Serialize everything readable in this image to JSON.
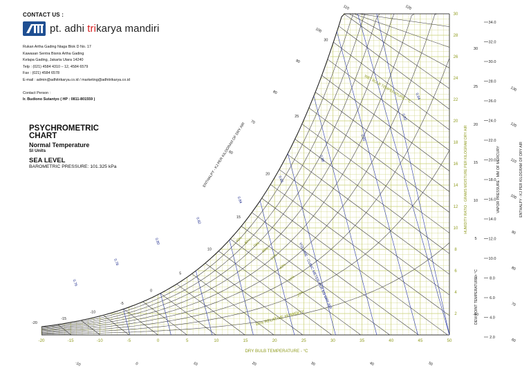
{
  "contact": {
    "title": "CONTACT US :",
    "company_pre": "pt. adhi ",
    "company_accent": "tri",
    "company_post": "karya mandiri",
    "address_lines": [
      "Rukan Artha Gading Niaga Blok D No. 17",
      "Kawasan Sentra Bisnis Artha Gading",
      "Kelapa Gading, Jakarta Utara 14240",
      "Telp  :  (021) 4584 4310 – 12, 4584 6579",
      "Fax   :  (021) 4584 6578",
      "E-mail  :  admin@adhitrikarya.co.id / marketing@adhitrikarya.co.id"
    ],
    "person_label": "Contact Person  :",
    "person": "Ir. Budiono Sutantyo  ( HP : 0811-801559 )"
  },
  "title_block": {
    "line1": "PSYCHROMETRIC",
    "line2": "CHART",
    "line3": "Normal Temperature",
    "line4": "SI Units",
    "line5": "SEA LEVEL",
    "line6": "BAROMETRIC PRESSURE: 101.325 kPa"
  },
  "chart": {
    "dry_bulb_label": "DRY BULB TEMPERATURE - °C",
    "dry_bulb_ticks": [
      "-20",
      "-15",
      "-10",
      "-5",
      "0",
      "5",
      "10",
      "15",
      "20",
      "25",
      "30",
      "35",
      "40",
      "45",
      "50"
    ],
    "humidity_ratio_label": "HUMIDITY RATIO - GRAMS MOISTURE PER KILOGRAM DRY AIR",
    "humidity_ratio_ticks": [
      "2",
      "4",
      "6",
      "8",
      "10",
      "12",
      "14",
      "16",
      "18",
      "20",
      "22",
      "24",
      "26",
      "28",
      "30"
    ],
    "vapor_pressure_label": "VAPOR PRESSURE - MM OF MERCURY",
    "vapor_pressure_ticks": [
      "34.0",
      "32.0",
      "30.0",
      "28.0",
      "26.0",
      "24.0",
      "22.0",
      "20.0",
      "18.0",
      "16.0",
      "14.0",
      "12.0",
      "10.0",
      "8.0",
      "6.0",
      "4.0",
      "2.0"
    ],
    "dew_point_label": "DEW POINT TEMPERATURE - °C",
    "dew_point_ticks": [
      "30",
      "25",
      "20",
      "15",
      "10",
      "5",
      "0",
      "-10"
    ],
    "enthalpy_left_label": "ENTHALPY - KJ PER KILOGRAM OF DRY AIR",
    "enthalpy_right_label": "ENTHALPY - KJ PER KILOGRAM OF DRY AIR",
    "enthalpy_top_ticks": [
      "110",
      "120",
      "100",
      "90",
      "80",
      "70",
      "60"
    ],
    "enthalpy_right_ticks": [
      "130",
      "120",
      "110",
      "100",
      "90",
      "80",
      "70",
      "60"
    ],
    "enthalpy_bottom_ticks": [
      "-10",
      "0",
      "10",
      "20",
      "30",
      "40",
      "50"
    ],
    "wet_bulb_label": "WET BULB TEMPERATURE - °C",
    "wet_bulb_ticks": [
      "30",
      "25",
      "20",
      "15",
      "10",
      "5",
      "0",
      "-5",
      "-10",
      "-15",
      "-20"
    ],
    "volume_label": "VOLUME - CUBIC METER PER KG DRY AIR",
    "volume_ticks": [
      "0.94",
      "0.92",
      "0.90",
      "0.88",
      "0.86",
      "0.84",
      "0.82",
      "0.80",
      "0.78",
      "0.76"
    ],
    "rh_label": "10% RELATIVE HUMIDITY",
    "rh_ticks": [
      "90%",
      "80%",
      "70%",
      "60%",
      "50%",
      "40%",
      "30%",
      "20%"
    ]
  }
}
